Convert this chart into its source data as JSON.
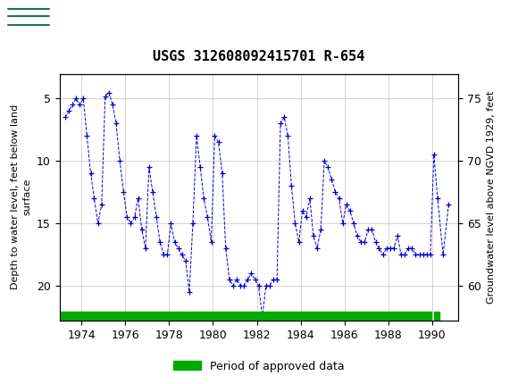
{
  "title": "USGS 312608092415701 R-654",
  "ylabel_left": "Depth to water level, feet below land\nsurface",
  "ylabel_right": "Groundwater level above NGVD 1929, feet",
  "ylim_left": [
    22.8,
    3.0
  ],
  "ylim_right": [
    57.2,
    77.0
  ],
  "yticks_left": [
    5,
    10,
    15,
    20
  ],
  "yticks_right": [
    60,
    65,
    70,
    75
  ],
  "xlim": [
    1973.0,
    1991.2
  ],
  "xticks": [
    1974,
    1976,
    1978,
    1980,
    1982,
    1984,
    1986,
    1988,
    1990
  ],
  "header_color": "#1a7a3c",
  "line_color": "#0000cc",
  "marker": "+",
  "linestyle": "--",
  "legend_label": "Period of approved data",
  "legend_color": "#00aa00",
  "background_color": "#ffffff",
  "grid_color": "#cccccc",
  "data_x": [
    1973.25,
    1973.42,
    1973.58,
    1973.75,
    1973.92,
    1974.08,
    1974.25,
    1974.42,
    1974.58,
    1974.75,
    1974.92,
    1975.08,
    1975.25,
    1975.42,
    1975.58,
    1975.75,
    1975.92,
    1976.08,
    1976.25,
    1976.42,
    1976.58,
    1976.75,
    1976.92,
    1977.08,
    1977.25,
    1977.42,
    1977.58,
    1977.75,
    1977.92,
    1978.08,
    1978.25,
    1978.42,
    1978.58,
    1978.75,
    1978.92,
    1979.08,
    1979.25,
    1979.42,
    1979.58,
    1979.75,
    1979.92,
    1980.08,
    1980.25,
    1980.42,
    1980.58,
    1980.75,
    1980.92,
    1981.08,
    1981.25,
    1981.42,
    1981.58,
    1981.75,
    1981.92,
    1982.08,
    1982.25,
    1982.42,
    1982.58,
    1982.75,
    1982.92,
    1983.08,
    1983.25,
    1983.42,
    1983.58,
    1983.75,
    1983.92,
    1984.08,
    1984.25,
    1984.42,
    1984.58,
    1984.75,
    1984.92,
    1985.08,
    1985.25,
    1985.42,
    1985.58,
    1985.75,
    1985.92,
    1986.08,
    1986.25,
    1986.42,
    1986.58,
    1986.75,
    1986.92,
    1987.08,
    1987.25,
    1987.42,
    1987.58,
    1987.75,
    1987.92,
    1988.08,
    1988.25,
    1988.42,
    1988.58,
    1988.75,
    1988.92,
    1989.08,
    1989.25,
    1989.42,
    1989.58,
    1989.75,
    1989.92,
    1990.08,
    1990.25,
    1990.5,
    1990.75
  ],
  "data_y": [
    6.5,
    6.0,
    5.5,
    5.0,
    5.5,
    5.0,
    8.0,
    11.0,
    13.0,
    15.0,
    13.5,
    4.8,
    4.5,
    5.5,
    7.0,
    10.0,
    12.5,
    14.5,
    15.0,
    14.5,
    13.0,
    15.5,
    17.0,
    10.5,
    12.5,
    14.5,
    16.5,
    17.5,
    17.5,
    15.0,
    16.5,
    17.0,
    17.5,
    18.0,
    20.5,
    15.0,
    8.0,
    10.5,
    13.0,
    14.5,
    16.5,
    8.0,
    8.5,
    11.0,
    17.0,
    19.5,
    20.0,
    19.5,
    20.0,
    20.0,
    19.5,
    19.0,
    19.5,
    20.0,
    22.5,
    20.0,
    20.0,
    19.5,
    19.5,
    7.0,
    6.5,
    8.0,
    12.0,
    15.0,
    16.5,
    14.0,
    14.5,
    13.0,
    16.0,
    17.0,
    15.5,
    10.0,
    10.5,
    11.5,
    12.5,
    13.0,
    15.0,
    13.5,
    14.0,
    15.0,
    16.0,
    16.5,
    16.5,
    15.5,
    15.5,
    16.5,
    17.0,
    17.5,
    17.0,
    17.0,
    17.0,
    16.0,
    17.5,
    17.5,
    17.0,
    17.0,
    17.5,
    17.5,
    17.5,
    17.5,
    17.5,
    9.5,
    13.0,
    17.5,
    13.5
  ],
  "bar1_start": 1973.0,
  "bar1_end": 1989.95,
  "bar2_start": 1990.08,
  "bar2_end": 1990.35,
  "title_fontsize": 11,
  "tick_fontsize": 9,
  "ylabel_fontsize": 8
}
